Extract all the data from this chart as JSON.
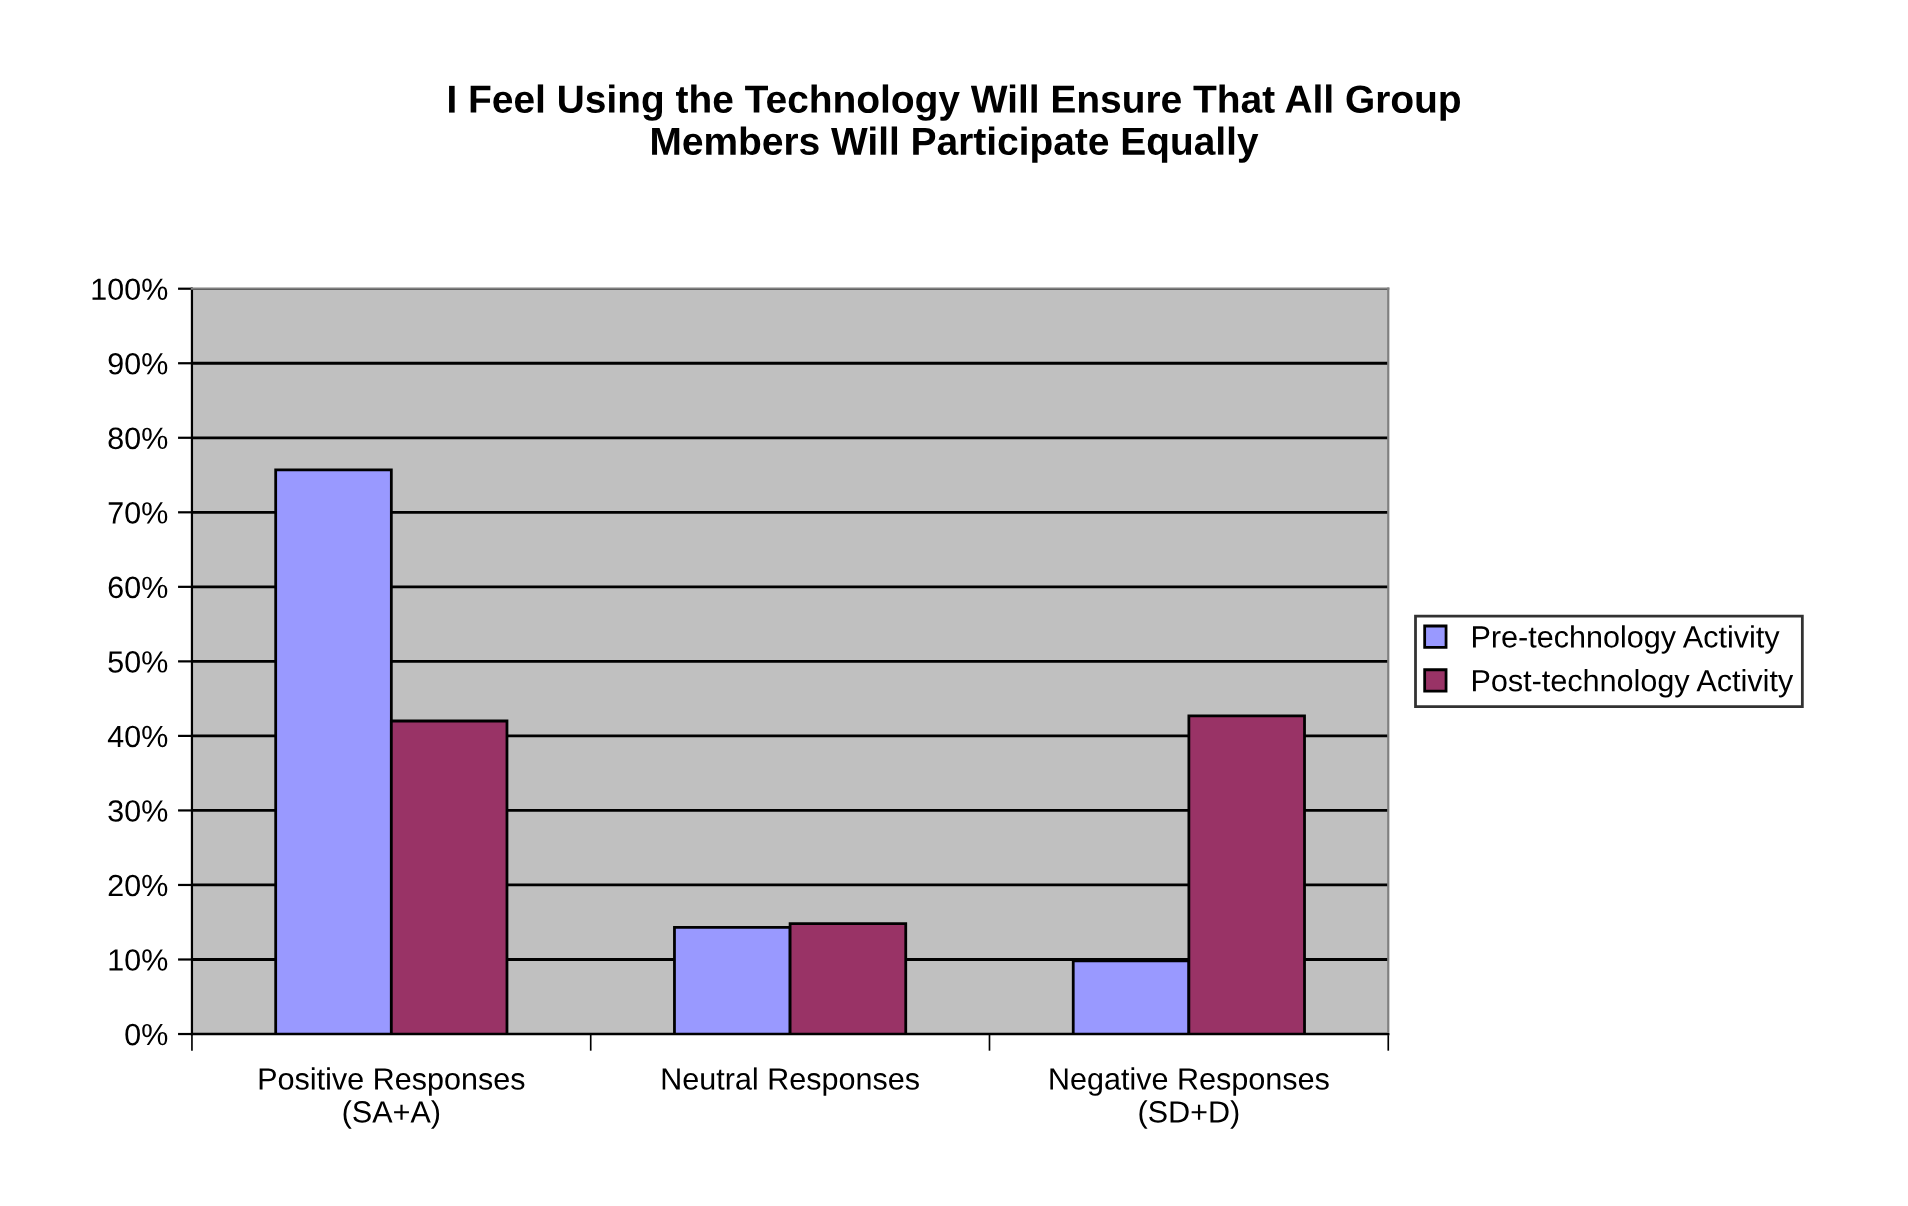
{
  "chart_data": {
    "type": "bar",
    "title": "I Feel Using the Technology Will Ensure That All Group\nMembers Will Participate Equally",
    "categories": [
      "Positive Responses\n(SA+A)",
      "Neutral Responses",
      "Negative Responses\n(SD+D)"
    ],
    "series": [
      {
        "name": "Pre-technology Activity",
        "color": "#9999ff",
        "values": [
          75.7,
          14.3,
          9.8
        ]
      },
      {
        "name": "Post-technology Activity",
        "color": "#993366",
        "values": [
          42.0,
          14.8,
          42.7
        ]
      }
    ],
    "ylim": [
      0,
      100
    ],
    "yticks": [
      {
        "value": 0,
        "label": "0%"
      },
      {
        "value": 10,
        "label": "10%"
      },
      {
        "value": 20,
        "label": "20%"
      },
      {
        "value": 30,
        "label": "30%"
      },
      {
        "value": 40,
        "label": "40%"
      },
      {
        "value": 50,
        "label": "50%"
      },
      {
        "value": 60,
        "label": "60%"
      },
      {
        "value": 70,
        "label": "70%"
      },
      {
        "value": 80,
        "label": "80%"
      },
      {
        "value": 90,
        "label": "90%"
      },
      {
        "value": 100,
        "label": "100%"
      }
    ],
    "grid": "y",
    "legend": "right"
  }
}
